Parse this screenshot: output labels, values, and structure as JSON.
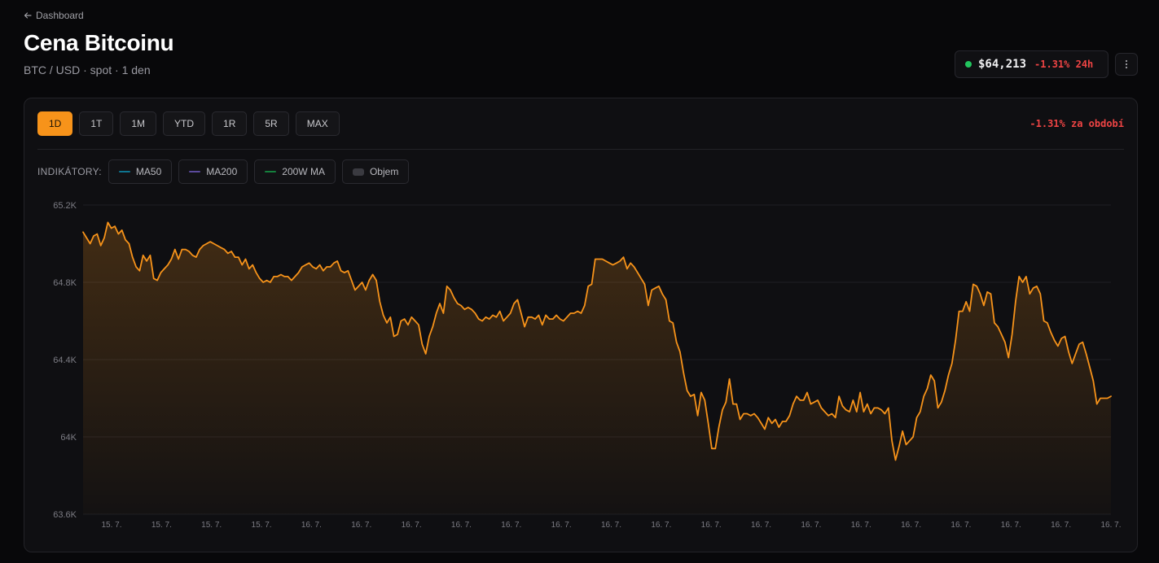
{
  "nav": {
    "back_label": "Dashboard"
  },
  "header": {
    "title": "Cena Bitcoinu",
    "subtitle": "BTC / USD · spot · 1 den"
  },
  "ticker": {
    "price": "$64,213",
    "change": "-1.31% 24h",
    "status_color": "#22c55e",
    "change_color": "#ef4444"
  },
  "ranges": [
    {
      "label": "1D",
      "active": true
    },
    {
      "label": "1T",
      "active": false
    },
    {
      "label": "1M",
      "active": false
    },
    {
      "label": "YTD",
      "active": false
    },
    {
      "label": "1R",
      "active": false
    },
    {
      "label": "5R",
      "active": false
    },
    {
      "label": "MAX",
      "active": false
    }
  ],
  "period_change": "-1.31% za období",
  "indicators": {
    "label": "INDIKÁTORY:",
    "items": [
      {
        "label": "MA50",
        "color": "#0e7490",
        "kind": "line"
      },
      {
        "label": "MA200",
        "color": "#5b4a9c",
        "kind": "line"
      },
      {
        "label": "200W MA",
        "color": "#15803d",
        "kind": "line"
      },
      {
        "label": "Objem",
        "color": "#3a3a40",
        "kind": "box"
      }
    ]
  },
  "colors": {
    "accent": "#f7931a",
    "negative": "#ef4444",
    "positive": "#22c55e"
  },
  "chart_data": {
    "type": "area",
    "ylim": [
      63600,
      65200
    ],
    "y_ticks": [
      "65.2K",
      "64.8K",
      "64.4K",
      "64K",
      "63.6K"
    ],
    "y_tick_values": [
      65200,
      64800,
      64400,
      64000,
      63600
    ],
    "x_tick_labels": [
      "15. 7.",
      "15. 7.",
      "15. 7.",
      "15. 7.",
      "16. 7.",
      "16. 7.",
      "16. 7.",
      "16. 7.",
      "16. 7.",
      "16. 7.",
      "16. 7.",
      "16. 7.",
      "16. 7.",
      "16. 7.",
      "16. 7.",
      "16. 7.",
      "16. 7.",
      "16. 7.",
      "16. 7.",
      "16. 7.",
      "16. 7."
    ],
    "grid": true,
    "series": [
      {
        "values": [
          65060,
          65030,
          65000,
          65040,
          65050,
          64990,
          65030,
          65110,
          65080,
          65090,
          65050,
          65070,
          65020,
          65000,
          64930,
          64880,
          64860,
          64940,
          64910,
          64940,
          64820,
          64810,
          64850,
          64870,
          64890,
          64920,
          64970,
          64920,
          64970,
          64970,
          64960,
          64940,
          64930,
          64970,
          64990,
          65000,
          65010,
          65000,
          64990,
          64980,
          64970,
          64950,
          64960,
          64930,
          64930,
          64890,
          64920,
          64870,
          64890,
          64850,
          64820,
          64800,
          64810,
          64800,
          64830,
          64830,
          64840,
          64830,
          64830,
          64810,
          64830,
          64850,
          64880,
          64890,
          64900,
          64880,
          64870,
          64890,
          64860,
          64880,
          64880,
          64900,
          64910,
          64860,
          64850,
          64860,
          64810,
          64760,
          64780,
          64800,
          64760,
          64810,
          64840,
          64810,
          64700,
          64630,
          64590,
          64620,
          64520,
          64530,
          64600,
          64610,
          64580,
          64620,
          64600,
          64580,
          64480,
          64430,
          64520,
          64570,
          64640,
          64690,
          64640,
          64780,
          64760,
          64720,
          64690,
          64680,
          64660,
          64670,
          64660,
          64640,
          64610,
          64600,
          64620,
          64610,
          64630,
          64620,
          64650,
          64600,
          64620,
          64640,
          64690,
          64710,
          64640,
          64570,
          64620,
          64620,
          64610,
          64630,
          64580,
          64630,
          64610,
          64610,
          64630,
          64610,
          64600,
          64620,
          64640,
          64640,
          64650,
          64640,
          64680,
          64780,
          64790,
          64920,
          64920,
          64920,
          64910,
          64900,
          64890,
          64900,
          64910,
          64930,
          64870,
          64900,
          64880,
          64850,
          64820,
          64790,
          64680,
          64760,
          64770,
          64780,
          64740,
          64710,
          64600,
          64590,
          64490,
          64440,
          64330,
          64240,
          64210,
          64220,
          64110,
          64230,
          64190,
          64070,
          63940,
          63940,
          64050,
          64140,
          64180,
          64300,
          64170,
          64170,
          64090,
          64120,
          64120,
          64110,
          64120,
          64100,
          64070,
          64040,
          64100,
          64070,
          64090,
          64050,
          64080,
          64080,
          64110,
          64170,
          64210,
          64190,
          64190,
          64230,
          64170,
          64180,
          64190,
          64150,
          64130,
          64110,
          64120,
          64100,
          64210,
          64160,
          64140,
          64130,
          64190,
          64130,
          64230,
          64130,
          64170,
          64120,
          64150,
          64150,
          64140,
          64120,
          64150,
          63980,
          63880,
          63950,
          64030,
          63960,
          63980,
          64000,
          64100,
          64130,
          64210,
          64250,
          64320,
          64290,
          64150,
          64180,
          64240,
          64320,
          64380,
          64500,
          64650,
          64650,
          64700,
          64650,
          64790,
          64780,
          64740,
          64680,
          64750,
          64740,
          64590,
          64570,
          64530,
          64490,
          64410,
          64530,
          64700,
          64830,
          64800,
          64830,
          64740,
          64770,
          64780,
          64740,
          64600,
          64590,
          64540,
          64500,
          64470,
          64510,
          64520,
          64440,
          64380,
          64430,
          64480,
          64490,
          64430,
          64360,
          64290,
          64170,
          64200,
          64200,
          64200,
          64210
        ]
      }
    ]
  }
}
